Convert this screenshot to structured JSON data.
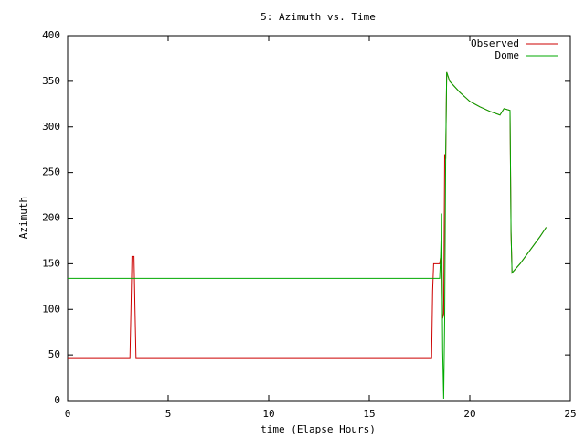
{
  "chart_data": {
    "type": "line",
    "title": "5: Azimuth vs. Time",
    "x_label": "time (Elapse Hours)",
    "y_label": "Azimuth",
    "xlim": [
      0,
      25
    ],
    "ylim": [
      0,
      400
    ],
    "xticks": [
      0,
      5,
      10,
      15,
      20,
      25
    ],
    "yticks": [
      0,
      50,
      100,
      150,
      200,
      250,
      300,
      350,
      400
    ],
    "legend": "upper-right",
    "grid": false,
    "series": [
      {
        "name": "Observed",
        "color": "#cc0000",
        "x": [
          0,
          3.1,
          3.15,
          3.2,
          3.3,
          3.35,
          3.4,
          18.1,
          18.15,
          18.2,
          18.5,
          18.6,
          18.65,
          18.7,
          18.75,
          18.8,
          18.85,
          19,
          19.5,
          20,
          20.5,
          21,
          21.5,
          21.7,
          22,
          22.05,
          22.1,
          22.5,
          23,
          23.5,
          23.8
        ],
        "values": [
          47,
          47,
          100,
          158,
          158,
          100,
          47,
          47,
          120,
          150,
          150,
          165,
          90,
          95,
          270,
          265,
          360,
          350,
          338,
          328,
          322,
          317,
          313,
          320,
          318,
          185,
          140,
          150,
          165,
          180,
          190
        ]
      },
      {
        "name": "Dome",
        "color": "#00aa00",
        "x": [
          0,
          18.5,
          18.55,
          18.6,
          18.65,
          18.7,
          18.75,
          18.8,
          18.85,
          19,
          19.5,
          20,
          20.5,
          21,
          21.5,
          21.7,
          22,
          22.05,
          22.1,
          22.5,
          23,
          23.5,
          23.8
        ],
        "values": [
          134,
          134,
          160,
          205,
          55,
          2,
          90,
          270,
          360,
          350,
          338,
          328,
          322,
          317,
          313,
          320,
          318,
          185,
          140,
          150,
          165,
          180,
          190
        ]
      }
    ]
  }
}
